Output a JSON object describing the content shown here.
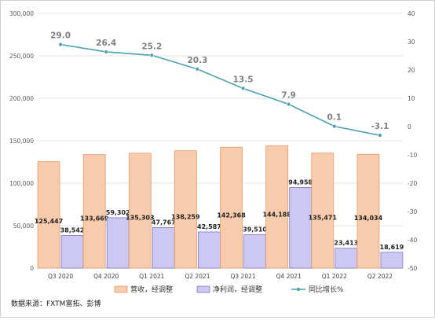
{
  "chart_data": {
    "type": "bar",
    "categories": [
      "Q3 2020",
      "Q4 2020",
      "Q1 2021",
      "Q2 2021",
      "Q3 2021",
      "Q4 2021",
      "Q1 2022",
      "Q2 2022"
    ],
    "series": [
      {
        "name": "营收，经调整",
        "type": "bar",
        "axis": "left",
        "color": "#f8cbad",
        "values": [
          125447,
          133669,
          135303,
          138259,
          142368,
          144188,
          135471,
          134034
        ],
        "labels": [
          "125,447",
          "133,669",
          "135,303",
          "138,259",
          "142,368",
          "144,188",
          "135,471",
          "134,034"
        ]
      },
      {
        "name": "净利润，经调整",
        "type": "bar",
        "axis": "left",
        "color": "#ccc8f2",
        "values": [
          38542,
          59302,
          47767,
          42587,
          39510,
          94958,
          23413,
          18619
        ],
        "labels": [
          "38,542",
          "59,302",
          "47,767",
          "42,587",
          "39,510",
          "94,958",
          "23,413",
          "18,619"
        ]
      },
      {
        "name": "同比增长%",
        "type": "line",
        "axis": "right",
        "color": "#4f9fad",
        "values": [
          29.0,
          26.4,
          25.2,
          20.3,
          13.5,
          7.9,
          0.1,
          -3.1
        ],
        "labels": [
          "29.0",
          "26.4",
          "25.2",
          "20.3",
          "13.5",
          "7.9",
          "0.1",
          "-3.1"
        ]
      }
    ],
    "ylim": [
      0,
      300000
    ],
    "y2lim": [
      -50,
      40
    ],
    "yticks": [
      "0",
      "50,000",
      "100,000",
      "150,000",
      "200,000",
      "250,000",
      "300,000"
    ],
    "y2ticks": [
      "-50",
      "-40",
      "-30",
      "-20",
      "-10",
      "0",
      "10",
      "20",
      "30",
      "40"
    ],
    "grid": true,
    "legend": "bottom"
  },
  "source_text": "数据来源：FXTM富拓、彭博"
}
